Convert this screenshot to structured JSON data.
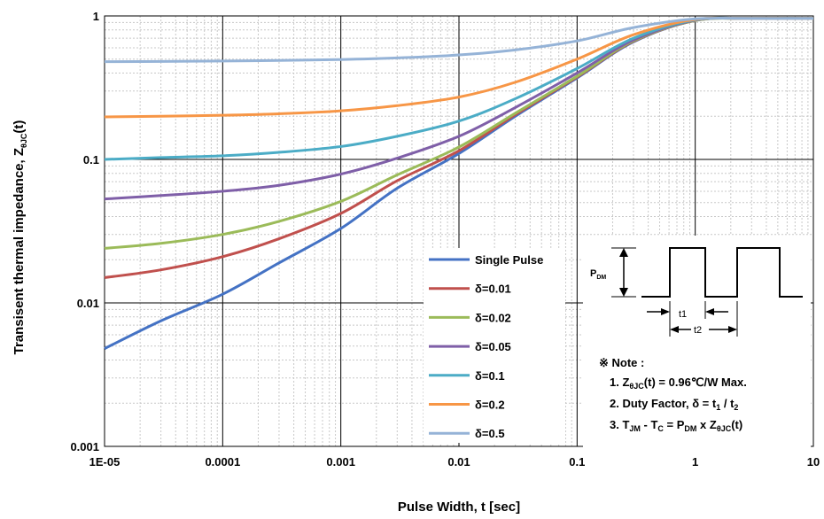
{
  "chart_data": {
    "type": "line",
    "title": "",
    "xlabel": "Pulse Width,  t [sec]",
    "ylabel": "Transisent thermal impedance, Z",
    "ylabel_sub": "θJC",
    "ylabel_suffix": "(t)",
    "x_scale": "log",
    "y_scale": "log",
    "xlim": [
      1e-05,
      10
    ],
    "ylim": [
      0.001,
      1
    ],
    "x_ticks": [
      1e-05,
      0.0001,
      0.001,
      0.01,
      0.1,
      1,
      10
    ],
    "x_tick_labels": [
      "1E-05",
      "0.0001",
      "0.001",
      "0.01",
      "0.1",
      "1",
      "10"
    ],
    "y_ticks": [
      0.001,
      0.01,
      0.1,
      1
    ],
    "y_tick_labels": [
      "0.001",
      "0.01",
      "0.1",
      "1"
    ],
    "grid": true,
    "legend_position": "bottom-center",
    "series": [
      {
        "name": "Single Pulse",
        "color": "#4472c4",
        "x": [
          1e-05,
          3e-05,
          0.0001,
          0.0003,
          0.001,
          0.003,
          0.01,
          0.03,
          0.1,
          0.3,
          1,
          3,
          10
        ],
        "y": [
          0.0048,
          0.0075,
          0.0115,
          0.019,
          0.033,
          0.063,
          0.11,
          0.2,
          0.37,
          0.66,
          0.93,
          0.96,
          0.96
        ]
      },
      {
        "name": "δ=0.01",
        "color": "#c0504d",
        "x": [
          1e-05,
          3e-05,
          0.0001,
          0.0003,
          0.001,
          0.003,
          0.01,
          0.03,
          0.1,
          0.3,
          1,
          3,
          10
        ],
        "y": [
          0.015,
          0.017,
          0.021,
          0.028,
          0.042,
          0.071,
          0.115,
          0.205,
          0.375,
          0.665,
          0.93,
          0.96,
          0.96
        ]
      },
      {
        "name": "δ=0.02",
        "color": "#9bbb59",
        "x": [
          1e-05,
          3e-05,
          0.0001,
          0.0003,
          0.001,
          0.003,
          0.01,
          0.03,
          0.1,
          0.3,
          1,
          3,
          10
        ],
        "y": [
          0.024,
          0.026,
          0.03,
          0.037,
          0.051,
          0.078,
          0.122,
          0.21,
          0.38,
          0.67,
          0.93,
          0.96,
          0.96
        ]
      },
      {
        "name": "δ=0.05",
        "color": "#7f5fa8",
        "x": [
          1e-05,
          3e-05,
          0.0001,
          0.0003,
          0.001,
          0.003,
          0.01,
          0.03,
          0.1,
          0.3,
          1,
          3,
          10
        ],
        "y": [
          0.053,
          0.056,
          0.06,
          0.066,
          0.079,
          0.102,
          0.145,
          0.23,
          0.4,
          0.68,
          0.935,
          0.96,
          0.96
        ]
      },
      {
        "name": "δ=0.1",
        "color": "#4bacc6",
        "x": [
          1e-05,
          3e-05,
          0.0001,
          0.0003,
          0.001,
          0.003,
          0.01,
          0.03,
          0.1,
          0.3,
          1,
          3,
          10
        ],
        "y": [
          0.1,
          0.103,
          0.106,
          0.112,
          0.123,
          0.145,
          0.185,
          0.265,
          0.43,
          0.7,
          0.94,
          0.96,
          0.96
        ]
      },
      {
        "name": "δ=0.2",
        "color": "#f79646",
        "x": [
          1e-05,
          3e-05,
          0.0001,
          0.0003,
          0.001,
          0.003,
          0.01,
          0.03,
          0.1,
          0.3,
          1,
          3,
          10
        ],
        "y": [
          0.198,
          0.2,
          0.203,
          0.208,
          0.218,
          0.237,
          0.272,
          0.345,
          0.5,
          0.74,
          0.945,
          0.96,
          0.96
        ]
      },
      {
        "name": "δ=0.5",
        "color": "#95b3d7",
        "x": [
          1e-05,
          3e-05,
          0.0001,
          0.0003,
          0.001,
          0.003,
          0.01,
          0.03,
          0.1,
          0.3,
          1,
          3,
          10
        ],
        "y": [
          0.48,
          0.482,
          0.485,
          0.49,
          0.497,
          0.51,
          0.535,
          0.58,
          0.67,
          0.83,
          0.955,
          0.96,
          0.96
        ]
      }
    ]
  },
  "diagram": {
    "pdm": "P",
    "pdm_sub": "DM",
    "t1": "t1",
    "t2": "t2"
  },
  "note": {
    "heading": "※ Note :",
    "line1_pre": "1. Z",
    "line1_sub": "θJC",
    "line1_post": "(t) = 0.96℃/W Max.",
    "line2_pre": "2. Duty Factor, δ = t",
    "line2_sub1": "1",
    "line2_mid": " / t",
    "line2_sub2": "2",
    "line3_pre": "3. T",
    "line3_sub1": "JM",
    "line3_mid1": " - T",
    "line3_sub2": "C",
    "line3_mid2": " = P",
    "line3_sub3": "DM",
    "line3_mid3": " x Z",
    "line3_sub4": "θJC",
    "line3_post": "(t)"
  }
}
